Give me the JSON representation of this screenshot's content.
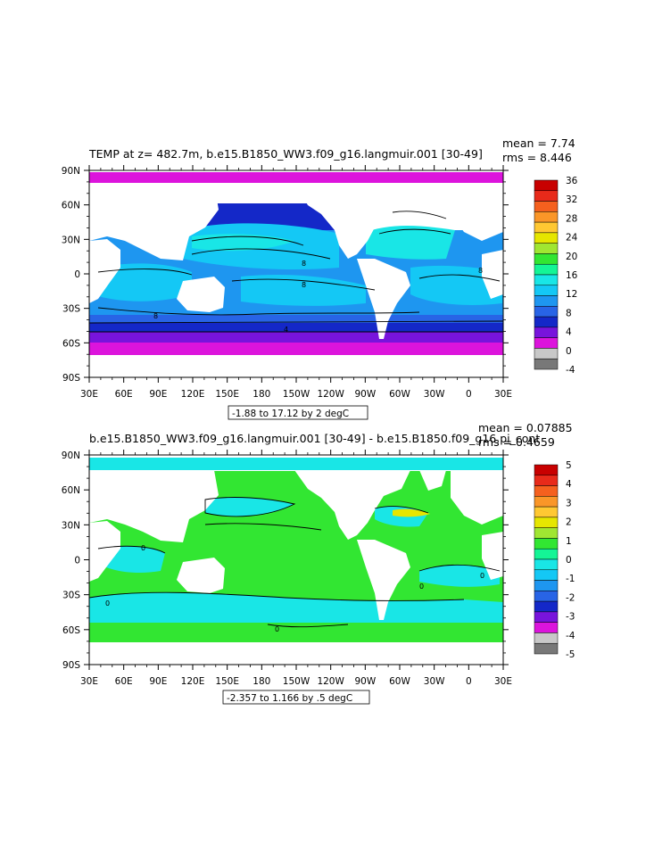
{
  "chart_data": [
    {
      "type": "heatmap",
      "title": "TEMP at z= 482.7m, b.e15.B1850_WW3.f09_g16.langmuir.001 [30-49]",
      "stats": {
        "mean": "mean = 7.74",
        "rms": "rms = 8.446"
      },
      "x_ticks": [
        "30E",
        "60E",
        "90E",
        "120E",
        "150E",
        "180",
        "150W",
        "120W",
        "90W",
        "60W",
        "30W",
        "0",
        "30E"
      ],
      "y_ticks": [
        "90N",
        "60N",
        "30N",
        "0",
        "30S",
        "60S",
        "90S"
      ],
      "colorbar_labels": [
        "36",
        "32",
        "28",
        "24",
        "20",
        "16",
        "12",
        "8",
        "4",
        "0",
        "-4"
      ],
      "colorbar_colors": [
        "#c80000",
        "#e82a1a",
        "#f5601e",
        "#fa9628",
        "#ffc832",
        "#e6e600",
        "#a0e632",
        "#32e632",
        "#14f596",
        "#19e6e6",
        "#14c8f5",
        "#1e96f0",
        "#2864e6",
        "#1428c8",
        "#7814dc",
        "#dc14dc",
        "#c8c8c8",
        "#787878"
      ],
      "range_box": "-1.88 to 17.12 by 2 degC",
      "contour_labels": [
        "8",
        "8",
        "8",
        "4",
        "8"
      ]
    },
    {
      "type": "heatmap",
      "title": "b.e15.B1850_WW3.f09_g16.langmuir.001 [30-49] - b.e15.B1850.f09_g16.pi_cont",
      "stats": {
        "mean": "mean = 0.07885",
        "rms": "rms = 0.4659"
      },
      "x_ticks": [
        "30E",
        "60E",
        "90E",
        "120E",
        "150E",
        "180",
        "150W",
        "120W",
        "90W",
        "60W",
        "30W",
        "0",
        "30E"
      ],
      "y_ticks": [
        "90N",
        "60N",
        "30N",
        "0",
        "30S",
        "60S",
        "90S"
      ],
      "colorbar_labels": [
        "5",
        "4",
        "3",
        "2",
        "1",
        "0",
        "-1",
        "-2",
        "-3",
        "-4",
        "-5"
      ],
      "colorbar_colors": [
        "#c80000",
        "#e82a1a",
        "#f5601e",
        "#fa9628",
        "#ffc832",
        "#e6e600",
        "#a0e632",
        "#32e632",
        "#14f596",
        "#19e6e6",
        "#14c8f5",
        "#1e96f0",
        "#2864e6",
        "#1428c8",
        "#7814dc",
        "#dc14dc",
        "#c8c8c8",
        "#787878"
      ],
      "range_box": "-2.357 to 1.166 by .5 degC",
      "contour_labels": [
        "0",
        "0",
        "0",
        "0",
        "0"
      ]
    }
  ]
}
